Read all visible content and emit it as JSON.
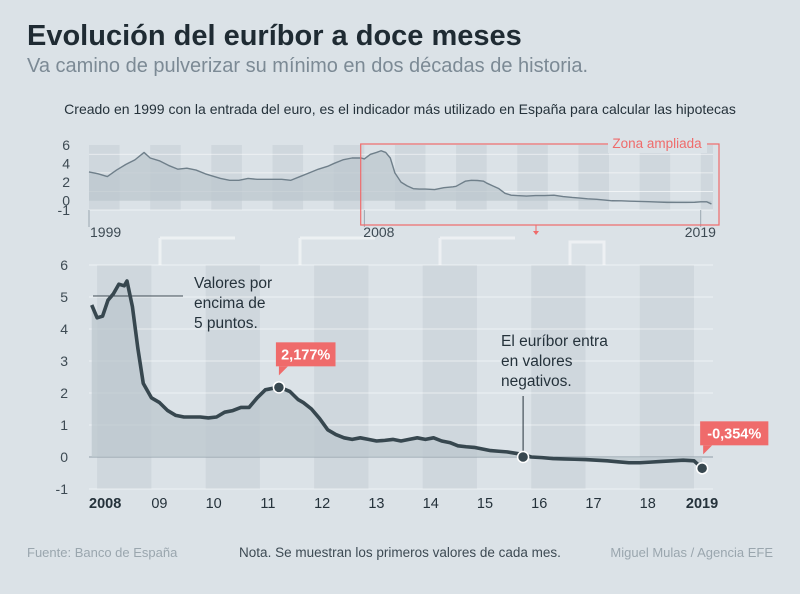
{
  "header": {
    "title": "Evolución del euríbor a doce meses",
    "subtitle": "Va camino de pulverizar su mínimo en dos décadas de historia.",
    "intro": "Creado en 1999 con la entrada del euro, es el indicador más utilizado en España para calcular las hipotecas"
  },
  "footer": {
    "source": "Fuente: Banco de España",
    "note": "Nota. Se muestran los primeros valores de cada mes.",
    "credit": "Miguel Mulas / Agencia EFE"
  },
  "colors": {
    "background": "#dbe2e7",
    "line": "#37474f",
    "area": "#bcc7ce",
    "band": "#cfd7dd",
    "highlight": "#ef6b6b",
    "grid": "#ffffff"
  },
  "chart_data": [
    {
      "type": "area",
      "name": "overview",
      "ylim": [
        -1,
        6
      ],
      "y_ticks": [
        "6",
        "4",
        "2",
        "0",
        "-1"
      ],
      "x_range": [
        1999,
        2019.4
      ],
      "x_tick_labels": [
        "1999",
        "2008",
        "2019"
      ],
      "zoom_label": "Zona ampliada",
      "x": [
        1999.0,
        1999.3,
        1999.6,
        1999.9,
        2000.2,
        2000.5,
        2000.8,
        2001.0,
        2001.3,
        2001.6,
        2001.9,
        2002.2,
        2002.5,
        2002.8,
        2003.0,
        2003.3,
        2003.6,
        2003.9,
        2004.2,
        2004.5,
        2004.8,
        2005.0,
        2005.3,
        2005.6,
        2005.9,
        2006.2,
        2006.5,
        2006.8,
        2007.0,
        2007.3,
        2007.6,
        2007.9,
        2008.0,
        2008.2,
        2008.4,
        2008.55,
        2008.7,
        2008.85,
        2009.0,
        2009.2,
        2009.4,
        2009.6,
        2009.8,
        2010.0,
        2010.3,
        2010.6,
        2010.9,
        2011.0,
        2011.3,
        2011.5,
        2011.7,
        2011.9,
        2012.0,
        2012.2,
        2012.4,
        2012.6,
        2012.8,
        2013.0,
        2013.3,
        2013.6,
        2013.9,
        2014.2,
        2014.5,
        2014.8,
        2015.0,
        2015.3,
        2015.6,
        2015.9,
        2016.1,
        2016.4,
        2016.7,
        2017.0,
        2017.3,
        2017.6,
        2017.9,
        2018.2,
        2018.5,
        2018.8,
        2019.0,
        2019.2,
        2019.35
      ],
      "values": [
        3.1,
        2.9,
        2.6,
        3.3,
        3.9,
        4.4,
        5.2,
        4.6,
        4.3,
        3.8,
        3.4,
        3.5,
        3.3,
        2.9,
        2.7,
        2.4,
        2.2,
        2.2,
        2.4,
        2.3,
        2.3,
        2.3,
        2.3,
        2.2,
        2.6,
        3.0,
        3.4,
        3.7,
        4.0,
        4.4,
        4.6,
        4.6,
        4.5,
        5.0,
        5.2,
        5.38,
        5.2,
        4.6,
        3.0,
        2.0,
        1.6,
        1.3,
        1.25,
        1.25,
        1.2,
        1.4,
        1.5,
        1.55,
        2.1,
        2.2,
        2.177,
        2.1,
        1.9,
        1.6,
        1.3,
        0.8,
        0.6,
        0.55,
        0.5,
        0.55,
        0.55,
        0.6,
        0.45,
        0.35,
        0.3,
        0.2,
        0.15,
        0.06,
        -0.005,
        -0.01,
        -0.05,
        -0.08,
        -0.1,
        -0.15,
        -0.18,
        -0.19,
        -0.19,
        -0.17,
        -0.12,
        -0.12,
        -0.354
      ]
    },
    {
      "type": "area",
      "name": "zoomed",
      "ylim": [
        -1,
        6
      ],
      "y_ticks": [
        "6",
        "5",
        "4",
        "3",
        "2",
        "1",
        "0",
        "-1"
      ],
      "x_range": [
        2007.85,
        2019.35
      ],
      "x_tick_labels": [
        "2008",
        "09",
        "10",
        "11",
        "12",
        "13",
        "14",
        "15",
        "16",
        "17",
        "18",
        "2019"
      ],
      "x": [
        2007.9,
        2008.0,
        2008.1,
        2008.2,
        2008.3,
        2008.4,
        2008.5,
        2008.55,
        2008.65,
        2008.75,
        2008.85,
        2009.0,
        2009.15,
        2009.3,
        2009.45,
        2009.6,
        2009.75,
        2009.9,
        2010.05,
        2010.2,
        2010.35,
        2010.5,
        2010.65,
        2010.8,
        2010.95,
        2011.1,
        2011.25,
        2011.35,
        2011.45,
        2011.55,
        2011.7,
        2011.8,
        2011.95,
        2012.1,
        2012.25,
        2012.4,
        2012.55,
        2012.7,
        2012.85,
        2013.0,
        2013.15,
        2013.3,
        2013.45,
        2013.6,
        2013.75,
        2013.9,
        2014.05,
        2014.2,
        2014.35,
        2014.5,
        2014.65,
        2014.8,
        2014.95,
        2015.1,
        2015.25,
        2015.4,
        2015.55,
        2015.7,
        2015.85,
        2016.0,
        2016.2,
        2016.4,
        2016.6,
        2016.8,
        2017.0,
        2017.2,
        2017.4,
        2017.6,
        2017.8,
        2018.0,
        2018.2,
        2018.4,
        2018.6,
        2018.8,
        2019.0,
        2019.15
      ],
      "values": [
        4.75,
        4.35,
        4.4,
        4.9,
        5.1,
        5.4,
        5.35,
        5.5,
        4.7,
        3.4,
        2.3,
        1.85,
        1.7,
        1.45,
        1.3,
        1.25,
        1.25,
        1.25,
        1.22,
        1.25,
        1.4,
        1.45,
        1.55,
        1.55,
        1.85,
        2.1,
        2.15,
        2.177,
        2.12,
        2.05,
        1.8,
        1.7,
        1.5,
        1.2,
        0.85,
        0.7,
        0.6,
        0.55,
        0.6,
        0.55,
        0.5,
        0.52,
        0.55,
        0.5,
        0.55,
        0.6,
        0.55,
        0.6,
        0.5,
        0.45,
        0.35,
        0.32,
        0.3,
        0.25,
        0.2,
        0.18,
        0.16,
        0.12,
        0.08,
        0.0,
        -0.02,
        -0.05,
        -0.06,
        -0.07,
        -0.08,
        -0.1,
        -0.12,
        -0.15,
        -0.18,
        -0.18,
        -0.16,
        -0.14,
        -0.12,
        -0.1,
        -0.12,
        -0.354
      ],
      "annotations": [
        {
          "text": "Valores por encima de 5 puntos."
        },
        {
          "text": "El euríbor entra en valores negativos."
        }
      ],
      "highlights": [
        {
          "label": "2,177%",
          "x": 2011.35,
          "y": 2.177
        },
        {
          "label": "-0,354%",
          "x": 2019.15,
          "y": -0.354
        }
      ],
      "negative_point": {
        "x": 2015.85,
        "y": 0.0
      }
    }
  ]
}
